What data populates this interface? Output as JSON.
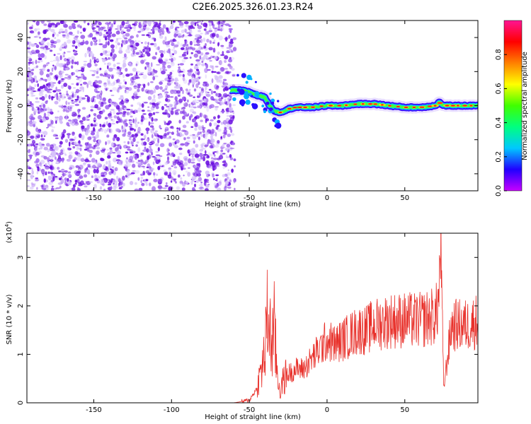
{
  "title": "C2E6.2025.326.01.23.R24",
  "colors": {
    "snr_line": "#e8302a",
    "speckle": "#6a0ee0",
    "background": "#ffffff",
    "colorbar": [
      "#c800ff",
      "#2000ff",
      "#00c8ff",
      "#00ff80",
      "#40ff00",
      "#ffff00",
      "#ff8000",
      "#ff0000",
      "#ff1493"
    ]
  },
  "chart_data": [
    {
      "type": "heatmap",
      "xlabel": "Height of straight line (km)",
      "ylabel": "Frequency (Hz)",
      "xlim": [
        -193,
        97
      ],
      "ylim": [
        -50,
        50
      ],
      "xticks": [
        -150,
        -100,
        -50,
        0,
        50
      ],
      "yticks": [
        -40,
        -20,
        0,
        20,
        40
      ],
      "colorbar": {
        "label": "Normalized spectral amplitude",
        "range": [
          0,
          1
        ],
        "ticks": [
          "0.0",
          "0.2",
          "0.4",
          "0.6",
          "0.8"
        ]
      },
      "noise_region_x": [
        -193,
        -62
      ],
      "ridge": {
        "x": [
          -62,
          -55,
          -50,
          -45,
          -40,
          -37,
          -34,
          -30,
          -25,
          -20,
          -10,
          0,
          10,
          20,
          30,
          40,
          50,
          60,
          70,
          72,
          75,
          80,
          90,
          97
        ],
        "freq_hz": [
          9,
          9,
          8,
          6,
          5,
          0,
          -3,
          -4,
          -2,
          -1,
          -1,
          0,
          0,
          1,
          1,
          0,
          -1,
          -1,
          0,
          2,
          0,
          0,
          0,
          0
        ]
      }
    },
    {
      "type": "line",
      "xlabel": "Height of straight line (km)",
      "ylabel": "SNR (10 * v/v)",
      "y_multiplier": "(x10",
      "y_multiplier_exp": "4",
      "xlim": [
        -193,
        97
      ],
      "ylim": [
        0,
        3.5
      ],
      "xticks": [
        -150,
        -100,
        -50,
        0,
        50
      ],
      "yticks": [
        0,
        1,
        2,
        3
      ],
      "series": [
        {
          "x": [
            -193,
            -60,
            -50,
            -45,
            -40,
            -38,
            -36,
            -34,
            -32,
            -30,
            -28,
            -25,
            -20,
            -15,
            -10,
            -5,
            0,
            5,
            10,
            20,
            25,
            30,
            40,
            50,
            60,
            65,
            70,
            72,
            73,
            75,
            80,
            90,
            97
          ],
          "y": [
            0,
            0,
            0.05,
            0.3,
            1.0,
            1.9,
            1.2,
            1.5,
            0.6,
            0.2,
            0.5,
            0.6,
            0.7,
            0.7,
            0.9,
            1.1,
            1.3,
            1.2,
            1.3,
            1.5,
            1.5,
            1.6,
            1.7,
            1.7,
            1.7,
            1.75,
            1.8,
            2.2,
            3.4,
            0.3,
            1.6,
            1.6,
            1.7
          ]
        }
      ]
    }
  ]
}
